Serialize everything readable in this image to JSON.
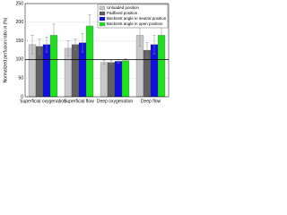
{
  "chart_data": {
    "type": "bar",
    "ylabel": "Normalized perfusion ratio in (%)",
    "categories": [
      "Superficial oxygenation",
      "Superficial flow",
      "Deep oxygenation",
      "Deep flow"
    ],
    "series": [
      {
        "name": "Unloaded position",
        "color": "#c8c8c8",
        "values": [
          140,
          130,
          92,
          165
        ],
        "errors": [
          25,
          20,
          5,
          30
        ]
      },
      {
        "name": "Padfixed position",
        "color": "#606060",
        "values": [
          135,
          140,
          92,
          125
        ],
        "errors": [
          20,
          15,
          5,
          20
        ]
      },
      {
        "name": "Backrest angle in neutral position",
        "color": "#1010e0",
        "values": [
          140,
          145,
          95,
          140
        ],
        "errors": [
          20,
          25,
          5,
          25
        ]
      },
      {
        "name": "Backrest angle in open position",
        "color": "#20e020",
        "values": [
          165,
          190,
          97,
          165
        ],
        "errors": [
          30,
          30,
          5,
          35
        ]
      }
    ],
    "reference_line": 100,
    "ylim": [
      0,
      250
    ],
    "yticks": [
      0,
      50,
      100,
      150,
      200,
      250
    ],
    "grid": true,
    "legend": "upper right"
  }
}
